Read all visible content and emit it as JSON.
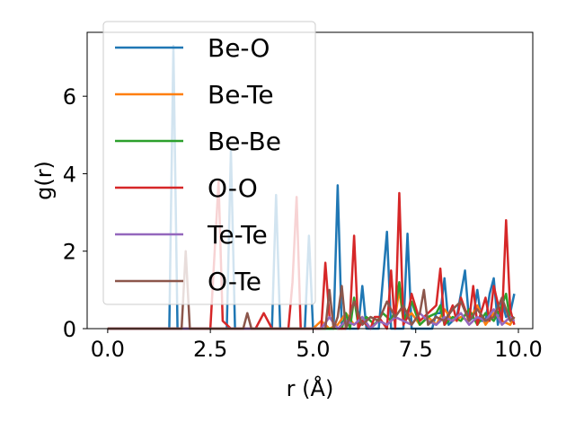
{
  "chart_data": {
    "type": "line",
    "xlabel": "r (Å)",
    "ylabel": "g(r)",
    "xlim": [
      -0.5,
      10.35
    ],
    "ylim": [
      0,
      7.65
    ],
    "xticks": [
      0.0,
      2.5,
      5.0,
      7.5,
      10.0
    ],
    "xtick_labels": [
      "0.0",
      "2.5",
      "5.0",
      "7.5",
      "10.0"
    ],
    "yticks": [
      0,
      2,
      4,
      6
    ],
    "ytick_labels": [
      "0",
      "2",
      "4",
      "6"
    ],
    "grid": false,
    "legend_position": "upper-left",
    "series": [
      {
        "name": "Be-O",
        "color": "#1f77b4",
        "x": [
          0.0,
          1.5,
          1.6,
          1.7,
          2.0,
          2.9,
          3.0,
          3.1,
          3.2,
          4.0,
          4.1,
          4.2,
          4.4,
          4.8,
          4.9,
          5.0,
          5.1,
          5.5,
          5.6,
          5.7,
          5.9,
          6.1,
          6.2,
          6.3,
          6.6,
          6.8,
          6.9,
          7.1,
          7.2,
          7.3,
          7.4,
          7.9,
          8.0,
          8.1,
          8.2,
          8.3,
          8.5,
          8.6,
          8.7,
          8.8,
          8.9,
          9.0,
          9.1,
          9.2,
          9.3,
          9.4,
          9.5,
          9.6,
          9.7,
          9.8,
          9.9
        ],
        "y": [
          0,
          0,
          7.3,
          0,
          0,
          0,
          4.6,
          0,
          0,
          0,
          3.45,
          0,
          0,
          0,
          2.4,
          0,
          0,
          0,
          3.7,
          0,
          0,
          0,
          1.1,
          0,
          0,
          2.5,
          0,
          0,
          0,
          2.45,
          0,
          0,
          0.4,
          0.4,
          1.3,
          0.1,
          0.3,
          0.9,
          1.5,
          0.2,
          0.3,
          1.0,
          0.2,
          0.2,
          0.9,
          1.3,
          0.1,
          0.7,
          0.3,
          0.4,
          0.9
        ]
      },
      {
        "name": "Be-Te",
        "color": "#ff7f0e",
        "x": [
          0.0,
          5.0,
          5.2,
          5.4,
          5.6,
          5.8,
          6.0,
          6.2,
          6.4,
          6.6,
          6.8,
          7.0,
          7.1,
          7.2,
          7.4,
          7.6,
          7.8,
          8.0,
          8.2,
          8.4,
          8.6,
          8.8,
          9.0,
          9.2,
          9.4,
          9.6,
          9.8,
          9.9
        ],
        "y": [
          0,
          0,
          0.2,
          0,
          0.1,
          0.4,
          0.1,
          0.3,
          0,
          0.2,
          0.1,
          0.3,
          1.0,
          0.2,
          0.4,
          0.1,
          0.3,
          0.1,
          0.5,
          0.2,
          0.3,
          0.2,
          0.6,
          0.1,
          0.4,
          0.2,
          0.1,
          0.3
        ]
      },
      {
        "name": "Be-Be",
        "color": "#2ca02c",
        "x": [
          0.0,
          5.7,
          5.8,
          5.9,
          6.0,
          6.1,
          6.3,
          6.5,
          6.7,
          6.9,
          7.0,
          7.1,
          7.2,
          7.4,
          7.6,
          7.8,
          8.0,
          8.1,
          8.2,
          8.4,
          8.6,
          8.8,
          9.0,
          9.2,
          9.4,
          9.6,
          9.7,
          9.8,
          9.9
        ],
        "y": [
          0,
          0,
          0.4,
          0,
          0.8,
          0.1,
          0.3,
          0.1,
          0.4,
          0.2,
          0.5,
          1.2,
          0.2,
          0.7,
          0.1,
          0.3,
          0.4,
          0.6,
          0.1,
          0.3,
          0.2,
          0.5,
          0.1,
          0.4,
          0.2,
          0.6,
          0.9,
          0.2,
          0.3
        ]
      },
      {
        "name": "O-O",
        "color": "#d62728",
        "x": [
          0.0,
          2.5,
          2.6,
          2.7,
          2.8,
          3.0,
          3.2,
          3.4,
          3.6,
          3.8,
          4.0,
          4.2,
          4.4,
          4.5,
          4.6,
          4.7,
          4.9,
          5.2,
          5.3,
          5.4,
          5.6,
          5.8,
          5.9,
          6.0,
          6.1,
          6.2,
          6.4,
          6.5,
          6.6,
          6.8,
          6.9,
          7.0,
          7.1,
          7.2,
          7.3,
          7.4,
          7.6,
          7.8,
          8.0,
          8.1,
          8.2,
          8.4,
          8.5,
          8.6,
          8.8,
          8.9,
          9.0,
          9.2,
          9.3,
          9.4,
          9.6,
          9.7,
          9.8,
          9.9
        ],
        "y": [
          0,
          0,
          1.9,
          3.8,
          0.2,
          0,
          0,
          0,
          0,
          0.4,
          0,
          0,
          0,
          1.2,
          3.4,
          0,
          0,
          0,
          1.7,
          0.3,
          0,
          0,
          0.3,
          2.4,
          0,
          0.2,
          0,
          0.3,
          0.3,
          0,
          1.5,
          0,
          3.5,
          0.1,
          0.3,
          0.9,
          0.2,
          0.4,
          0.6,
          1.55,
          0.1,
          0.6,
          0.2,
          0.8,
          0.2,
          1.1,
          0.1,
          0.8,
          0.2,
          1.1,
          0.2,
          2.8,
          0.5,
          0.1
        ]
      },
      {
        "name": "Te-Te",
        "color": "#9467bd",
        "x": [
          0.0,
          5.2,
          5.4,
          5.6,
          5.8,
          6.0,
          6.2,
          6.4,
          6.6,
          6.8,
          7.0,
          7.2,
          7.4,
          7.6,
          7.8,
          8.0,
          8.2,
          8.4,
          8.6,
          8.8,
          9.0,
          9.2,
          9.4,
          9.6,
          9.8,
          9.9
        ],
        "y": [
          0,
          0,
          0.3,
          0,
          0.2,
          0.1,
          0.3,
          0,
          0.2,
          0.1,
          0.3,
          0.2,
          0.1,
          0.4,
          0.2,
          0.1,
          0.3,
          0.2,
          0.4,
          0.1,
          0.3,
          0.2,
          0.5,
          0.1,
          0.3,
          0.2
        ]
      },
      {
        "name": "O-Te",
        "color": "#8c564b",
        "x": [
          0.0,
          1.8,
          1.9,
          2.0,
          3.3,
          3.4,
          3.5,
          5.3,
          5.4,
          5.5,
          5.6,
          5.7,
          5.8,
          6.0,
          6.2,
          6.4,
          6.6,
          6.8,
          7.0,
          7.2,
          7.4,
          7.6,
          7.7,
          7.8,
          8.0,
          8.2,
          8.4,
          8.6,
          8.8,
          9.0,
          9.2,
          9.4,
          9.6,
          9.8,
          9.9
        ],
        "y": [
          0,
          0,
          2.0,
          0,
          0,
          0.4,
          0,
          0,
          1.0,
          0,
          0.3,
          1.1,
          0,
          0.7,
          0.1,
          0.3,
          0.2,
          0.7,
          0.3,
          0.6,
          0.1,
          0.4,
          1.0,
          0.1,
          0.3,
          0.2,
          0.5,
          0.7,
          0.2,
          0.5,
          0.2,
          0.3,
          0.8,
          0.2,
          0.3
        ]
      }
    ]
  }
}
